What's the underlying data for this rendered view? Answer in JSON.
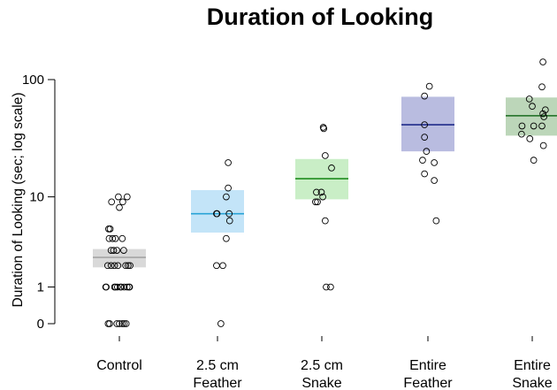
{
  "chart_data": {
    "type": "scatter",
    "title": "Duration of Looking",
    "ylabel": "Duration of Looking (sec; log scale)",
    "xlabel": "",
    "yscale": "log1p",
    "yticks": [
      0,
      1,
      10,
      100
    ],
    "ytick_labels": [
      "0",
      "1",
      "10",
      "100"
    ],
    "ylim": [
      0,
      140
    ],
    "grid": false,
    "categories": [
      {
        "lines": [
          "Control"
        ]
      },
      {
        "lines": [
          "2.5 cm",
          "Feather"
        ]
      },
      {
        "lines": [
          "2.5 cm",
          "Snake"
        ]
      },
      {
        "lines": [
          "Entire",
          "Feather"
        ]
      },
      {
        "lines": [
          "Entire",
          "Snake"
        ]
      }
    ],
    "groups": [
      {
        "name": "Control",
        "mean": 2.5,
        "ci": [
          1.9,
          3.1
        ],
        "fill": "#d9d9d9",
        "line": "#a6a6a6",
        "points": [
          [
            -0.22,
            5
          ],
          [
            -0.19,
            5
          ],
          [
            -0.14,
            4
          ],
          [
            -0.21,
            4
          ],
          [
            -0.12,
            3
          ],
          [
            -0.24,
            2
          ],
          [
            -0.17,
            2
          ],
          [
            -0.28,
            1
          ],
          [
            -0.23,
            0
          ],
          [
            -0.08,
            4
          ],
          [
            -0.03,
            2
          ],
          [
            0.02,
            1
          ],
          [
            0.09,
            3
          ],
          [
            0.13,
            2
          ],
          [
            0.2,
            1
          ],
          [
            -0.2,
            0
          ],
          [
            -0.05,
            0
          ],
          [
            0.06,
            0
          ],
          [
            0.14,
            0
          ],
          [
            -0.27,
            1
          ],
          [
            -0.1,
            1
          ],
          [
            0.04,
            1
          ],
          [
            0.1,
            1
          ],
          [
            -0.04,
            1
          ],
          [
            0.16,
            1
          ],
          [
            0.21,
            1
          ],
          [
            -0.17,
            3
          ],
          [
            0.06,
            4
          ],
          [
            0.18,
            2
          ],
          [
            0.0,
            0
          ],
          [
            0.1,
            0
          ],
          [
            -0.02,
            10
          ],
          [
            0.07,
            9
          ],
          [
            -0.16,
            9
          ],
          [
            -0.1,
            2
          ],
          [
            0.0,
            8
          ],
          [
            0.16,
            10
          ],
          [
            -0.08,
            1
          ],
          [
            -0.05,
            3
          ],
          [
            0.22,
            2
          ]
        ]
      },
      {
        "name": "2.5 cm Feather",
        "mean": 7.0,
        "ci": [
          4.6,
          11.5
        ],
        "fill": "#c3e4f8",
        "line": "#29a3d6",
        "points": [
          [
            -0.02,
            7
          ],
          [
            -0.01,
            7
          ],
          [
            0.22,
            20
          ],
          [
            0.22,
            12
          ],
          [
            0.18,
            10
          ],
          [
            0.24,
            7
          ],
          [
            0.25,
            6
          ],
          [
            0.18,
            4
          ],
          [
            -0.02,
            2
          ],
          [
            0.11,
            2
          ],
          [
            0.07,
            0
          ]
        ]
      },
      {
        "name": "2.5 cm Snake",
        "mean": 14.5,
        "ci": [
          9.5,
          21.5
        ],
        "fill": "#c9eec6",
        "line": "#1e8c1e",
        "points": [
          [
            0.03,
            40
          ],
          [
            0.04,
            39
          ],
          [
            0.07,
            23
          ],
          [
            0.2,
            18
          ],
          [
            -0.11,
            11
          ],
          [
            -0.01,
            11
          ],
          [
            0.02,
            10
          ],
          [
            -0.13,
            9
          ],
          [
            -0.09,
            9
          ],
          [
            0.07,
            6
          ],
          [
            0.09,
            1
          ],
          [
            0.18,
            1
          ]
        ]
      },
      {
        "name": "Entire Feather",
        "mean": 42,
        "ci": [
          25,
          72
        ],
        "fill": "#b9bce0",
        "line": "#1f2b8a",
        "points": [
          [
            0.03,
            88
          ],
          [
            -0.07,
            73
          ],
          [
            -0.07,
            42
          ],
          [
            -0.07,
            33
          ],
          [
            -0.11,
            21
          ],
          [
            0.13,
            20
          ],
          [
            -0.03,
            25
          ],
          [
            -0.07,
            16
          ],
          [
            0.13,
            14
          ],
          [
            0.17,
            6
          ]
        ]
      },
      {
        "name": "Entire Snake",
        "mean": 50,
        "ci": [
          34,
          71
        ],
        "fill": "#bcd6b9",
        "line": "#196a1f",
        "points": [
          [
            0.22,
            140
          ],
          [
            0.2,
            87
          ],
          [
            -0.06,
            69
          ],
          [
            0.0,
            60
          ],
          [
            0.27,
            56
          ],
          [
            0.24,
            49
          ],
          [
            0.22,
            52
          ],
          [
            0.03,
            41
          ],
          [
            0.2,
            41
          ],
          [
            -0.21,
            41
          ],
          [
            -0.22,
            35
          ],
          [
            -0.05,
            32
          ],
          [
            0.23,
            28
          ],
          [
            0.03,
            21
          ]
        ]
      }
    ]
  }
}
